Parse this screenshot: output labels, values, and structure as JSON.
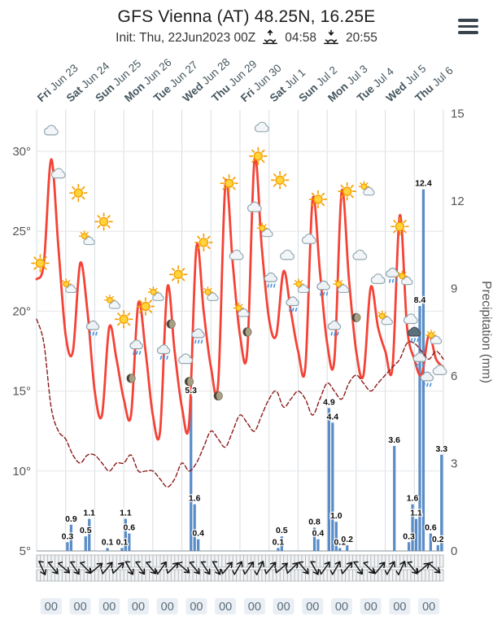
{
  "header": {
    "title": "GFS Vienna (AT) 48.25N, 16.25E",
    "init_label": "Init: Thu, 22Jun2023 00Z",
    "sunrise_time": "04:58",
    "sunset_time": "20:55"
  },
  "chart_data": {
    "type": "meteogram (line + bar)",
    "title": "GFS Vienna (AT) 48.25N, 16.25E",
    "days": [
      {
        "name": "Fri",
        "date": "Jun 23"
      },
      {
        "name": "Sat",
        "date": "Jun 24"
      },
      {
        "name": "Sun",
        "date": "Jun 25"
      },
      {
        "name": "Mon",
        "date": "Jun 26"
      },
      {
        "name": "Tue",
        "date": "Jun 27"
      },
      {
        "name": "Wed",
        "date": "Jun 28"
      },
      {
        "name": "Thu",
        "date": "Jun 29"
      },
      {
        "name": "Fri",
        "date": "Jun 30"
      },
      {
        "name": "Sat",
        "date": "Jul 1"
      },
      {
        "name": "Sun",
        "date": "Jul 2"
      },
      {
        "name": "Mon",
        "date": "Jul 3"
      },
      {
        "name": "Tue",
        "date": "Jul 4"
      },
      {
        "name": "Wed",
        "date": "Jul 5"
      },
      {
        "name": "Thu",
        "date": "Jul 6"
      }
    ],
    "temp_axis": {
      "tick_labels": [
        "30°",
        "25°",
        "20°",
        "15°",
        "10°",
        "5°"
      ],
      "tick_values": [
        30,
        25,
        20,
        15,
        10,
        5
      ],
      "min": 5,
      "max": 30
    },
    "precip_axis": {
      "label": "Precipitation (mm)",
      "ticks": [
        15,
        12,
        9,
        6,
        3,
        0
      ],
      "min": 0,
      "max": 15
    },
    "series": [
      {
        "name": "temperature",
        "type": "line",
        "color": "#f44336",
        "width": 2.8,
        "step_hours": 6,
        "values": [
          22,
          23,
          29.5,
          24,
          18.5,
          17.5,
          23,
          20,
          15,
          13.5,
          19,
          17,
          14.5,
          13.5,
          20.5,
          17.5,
          13.5,
          12.5,
          21.5,
          17.5,
          14,
          13,
          24,
          20,
          16.5,
          15.5,
          28,
          23,
          18.5,
          17.5,
          29.5,
          24,
          19.5,
          18.5,
          22.5,
          20,
          17.5,
          16.5,
          27,
          22.5,
          18,
          17,
          27.5,
          22,
          17.5,
          16,
          21.5,
          19,
          17.5,
          16.5,
          26,
          19,
          17,
          16,
          18.5,
          17,
          16.5
        ]
      },
      {
        "name": "dew-point",
        "type": "line",
        "color": "#8b1a1a",
        "width": 1.4,
        "dashed": true,
        "step_hours": 6,
        "values": [
          19.5,
          18,
          14,
          12.5,
          12,
          11,
          10.5,
          11,
          11,
          10.5,
          10,
          10.5,
          10.5,
          11,
          10,
          10,
          10,
          9.5,
          9,
          9.5,
          10.5,
          10,
          10.5,
          11.5,
          12.5,
          12,
          11.5,
          12.5,
          13.5,
          13,
          12.5,
          13.5,
          14.5,
          15,
          14,
          14.5,
          15,
          14.5,
          13.5,
          14.5,
          15.5,
          15,
          14.5,
          15.5,
          16,
          15.5,
          15,
          15.5,
          16,
          16.5,
          17,
          18,
          18,
          17.5,
          17,
          17.5,
          17
        ]
      }
    ],
    "precipitation": {
      "color": "#5a8dc8",
      "step_hours": 3,
      "bars": [
        {
          "t": 8,
          "v": 0.3
        },
        {
          "t": 9,
          "v": 0.9
        },
        {
          "t": 13,
          "v": 0.5
        },
        {
          "t": 14,
          "v": 1.1
        },
        {
          "t": 19,
          "v": 0.1
        },
        {
          "t": 23,
          "v": 0.1
        },
        {
          "t": 24,
          "v": 1.1
        },
        {
          "t": 25,
          "v": 0.6
        },
        {
          "t": 42,
          "v": 5.3
        },
        {
          "t": 43,
          "v": 1.6
        },
        {
          "t": 44,
          "v": 0.4
        },
        {
          "t": 66,
          "v": 0.1
        },
        {
          "t": 67,
          "v": 0.5
        },
        {
          "t": 76,
          "v": 0.8
        },
        {
          "t": 77,
          "v": 0.4
        },
        {
          "t": 80,
          "v": 4.9
        },
        {
          "t": 81,
          "v": 4.4
        },
        {
          "t": 82,
          "v": 1.0
        },
        {
          "t": 83,
          "v": 0.1
        },
        {
          "t": 85,
          "v": 0.2
        },
        {
          "t": 98,
          "v": 3.6
        },
        {
          "t": 102,
          "v": 0.3
        },
        {
          "t": 103,
          "v": 1.6
        },
        {
          "t": 104,
          "v": 1.1
        },
        {
          "t": 105,
          "v": 8.4
        },
        {
          "t": 106,
          "v": 12.4
        },
        {
          "t": 108,
          "v": 0.6
        },
        {
          "t": 110,
          "v": 0.2
        },
        {
          "t": 111,
          "v": 3.3
        }
      ]
    },
    "icons": [
      {
        "t": 1,
        "temp": 23,
        "kind": "sun"
      },
      {
        "t": 4,
        "temp": 31.3,
        "kind": "cloud"
      },
      {
        "t": 6,
        "temp": 28.6,
        "kind": "cloud"
      },
      {
        "t": 9,
        "temp": 21.5,
        "kind": "partly"
      },
      {
        "t": 11.5,
        "temp": 27.4,
        "kind": "sun"
      },
      {
        "t": 14,
        "temp": 24.5,
        "kind": "partly"
      },
      {
        "t": 15.5,
        "temp": 19,
        "kind": "rain"
      },
      {
        "t": 18.5,
        "temp": 25.6,
        "kind": "sun"
      },
      {
        "t": 21,
        "temp": 20.5,
        "kind": "partly"
      },
      {
        "t": 24,
        "temp": 19.5,
        "kind": "sun"
      },
      {
        "t": 26,
        "temp": 15.8,
        "kind": "moon"
      },
      {
        "t": 27.5,
        "temp": 17.8,
        "kind": "rain"
      },
      {
        "t": 30,
        "temp": 20.3,
        "kind": "sun"
      },
      {
        "t": 33,
        "temp": 21,
        "kind": "partly"
      },
      {
        "t": 35,
        "temp": 17.5,
        "kind": "rain"
      },
      {
        "t": 37,
        "temp": 19.2,
        "kind": "moon"
      },
      {
        "t": 39,
        "temp": 22.3,
        "kind": "sun"
      },
      {
        "t": 41,
        "temp": 17,
        "kind": "cloud"
      },
      {
        "t": 42,
        "temp": 15.6,
        "kind": "moon"
      },
      {
        "t": 44.5,
        "temp": 18.5,
        "kind": "rain"
      },
      {
        "t": 46,
        "temp": 24.3,
        "kind": "sun"
      },
      {
        "t": 48,
        "temp": 21,
        "kind": "partly"
      },
      {
        "t": 50,
        "temp": 14.7,
        "kind": "moon"
      },
      {
        "t": 53,
        "temp": 28,
        "kind": "sun"
      },
      {
        "t": 55,
        "temp": 23.5,
        "kind": "cloud"
      },
      {
        "t": 56.5,
        "temp": 20,
        "kind": "partly"
      },
      {
        "t": 58,
        "temp": 18.7,
        "kind": "moon"
      },
      {
        "t": 60,
        "temp": 26.5,
        "kind": "cloud"
      },
      {
        "t": 61,
        "temp": 29.7,
        "kind": "sun"
      },
      {
        "t": 62,
        "temp": 31.5,
        "kind": "cloud"
      },
      {
        "t": 63,
        "temp": 25,
        "kind": "partly"
      },
      {
        "t": 64.5,
        "temp": 22,
        "kind": "rain"
      },
      {
        "t": 67,
        "temp": 28.2,
        "kind": "sun"
      },
      {
        "t": 69,
        "temp": 23.5,
        "kind": "cloud"
      },
      {
        "t": 70.5,
        "temp": 20.5,
        "kind": "rain"
      },
      {
        "t": 73,
        "temp": 21.5,
        "kind": "partly"
      },
      {
        "t": 75,
        "temp": 24.5,
        "kind": "cloud"
      },
      {
        "t": 77.5,
        "temp": 27,
        "kind": "sun"
      },
      {
        "t": 79,
        "temp": 21.5,
        "kind": "rain"
      },
      {
        "t": 82,
        "temp": 19,
        "kind": "rain"
      },
      {
        "t": 84,
        "temp": 21.5,
        "kind": "partly"
      },
      {
        "t": 85.5,
        "temp": 27.5,
        "kind": "sun"
      },
      {
        "t": 88,
        "temp": 19.6,
        "kind": "moon"
      },
      {
        "t": 89,
        "temp": 23.5,
        "kind": "cloud"
      },
      {
        "t": 91,
        "temp": 27.6,
        "kind": "partly"
      },
      {
        "t": 94,
        "temp": 22,
        "kind": "cloud"
      },
      {
        "t": 96,
        "temp": 19.5,
        "kind": "partly"
      },
      {
        "t": 98,
        "temp": 22.3,
        "kind": "rain"
      },
      {
        "t": 100,
        "temp": 25.3,
        "kind": "sun"
      },
      {
        "t": 101.5,
        "temp": 22,
        "kind": "partly"
      },
      {
        "t": 103,
        "temp": 19.5,
        "kind": "cloud"
      },
      {
        "t": 104,
        "temp": 18.6,
        "kind": "storm"
      },
      {
        "t": 105.5,
        "temp": 17,
        "kind": "rain"
      },
      {
        "t": 107.5,
        "temp": 15.8,
        "kind": "rain"
      },
      {
        "t": 109.5,
        "temp": 18.3,
        "kind": "partly"
      },
      {
        "t": 111,
        "temp": 16.3,
        "kind": "cloud"
      }
    ],
    "wind_arrows": {
      "color": "#141414",
      "angles": [
        155,
        140,
        130,
        145,
        135,
        50,
        40,
        45,
        150,
        145,
        140,
        35,
        45,
        130,
        140,
        145,
        150,
        40,
        30,
        35,
        25,
        40,
        50,
        45,
        140,
        150,
        35,
        30,
        40,
        145,
        135,
        40,
        30,
        25,
        140,
        50,
        130
      ]
    },
    "hour_labels": [
      "00",
      "00",
      "00",
      "00",
      "00",
      "00",
      "00",
      "00",
      "00",
      "00",
      "00",
      "00",
      "00",
      "00"
    ],
    "layout_hints": {
      "grid": true,
      "temp_line_color": "#f44336",
      "dew_line_color": "#8b1a1a",
      "bar_color": "#5a8dc8"
    }
  }
}
